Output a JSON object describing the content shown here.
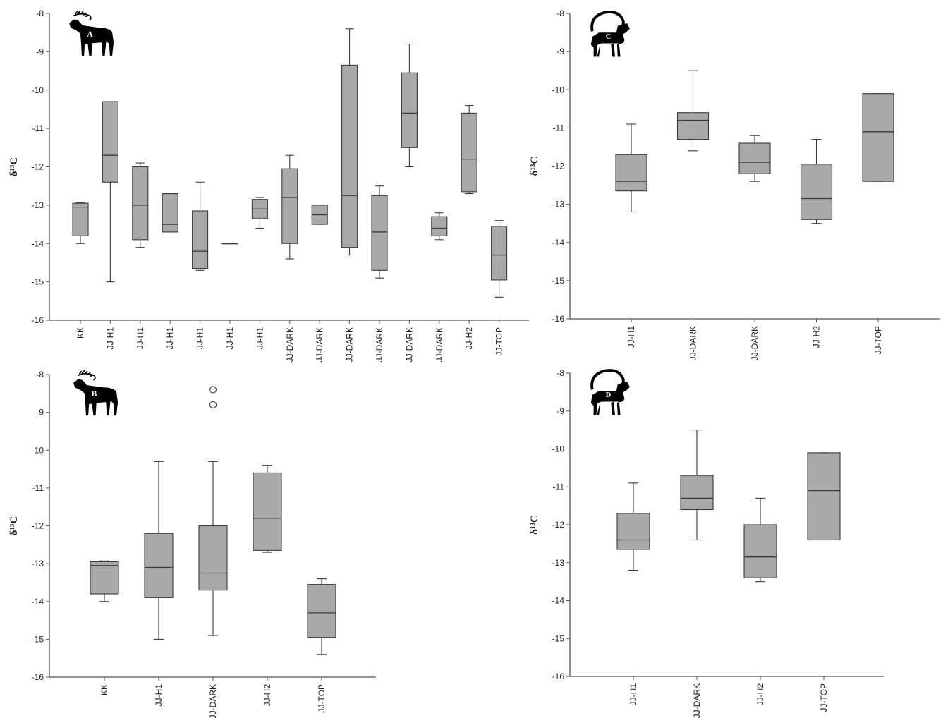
{
  "figure": {
    "y_axis_label": "δ¹³C",
    "colors": {
      "box_fill": "#a9a9ab",
      "stroke": "#3a3a3a",
      "axis": "#555555"
    }
  },
  "chart_data": [
    {
      "type": "box",
      "panel_label": "A",
      "icon": "red-deer-silhouette-icon",
      "ylabel": "δ¹³C",
      "ylim": [
        -16,
        -8
      ],
      "yticks": [
        -8,
        -9,
        -10,
        -11,
        -12,
        -13,
        -14,
        -15,
        -16
      ],
      "categories": [
        "KK",
        "JJ-H1",
        "JJ-H1",
        "JJ-H1",
        "JJ-H1",
        "JJ-H1",
        "JJ-H1",
        "JJ-DARK",
        "JJ-DARK",
        "JJ-DARK",
        "JJ-DARK",
        "JJ-DARK",
        "JJ-DARK",
        "JJ-H2",
        "JJ-TOP"
      ],
      "boxes": [
        {
          "min": -14.0,
          "q1": -13.8,
          "median": -13.05,
          "q3": -12.95,
          "max": -12.93
        },
        {
          "min": -15.0,
          "q1": -12.4,
          "median": -11.7,
          "q3": -10.3,
          "max": -10.3
        },
        {
          "min": -14.1,
          "q1": -13.9,
          "median": -13.0,
          "q3": -12.0,
          "max": -11.9
        },
        {
          "min": -13.7,
          "q1": -13.7,
          "median": -13.5,
          "q3": -12.7,
          "max": -12.7
        },
        {
          "min": -14.7,
          "q1": -14.65,
          "median": -14.2,
          "q3": -13.15,
          "max": -12.4
        },
        {
          "min": -14.0,
          "q1": -14.0,
          "median": -14.0,
          "q3": -14.0,
          "max": -14.0
        },
        {
          "min": -13.6,
          "q1": -13.35,
          "median": -13.1,
          "q3": -12.85,
          "max": -12.8
        },
        {
          "min": -14.4,
          "q1": -14.0,
          "median": -12.8,
          "q3": -12.05,
          "max": -11.7
        },
        {
          "min": -13.5,
          "q1": -13.5,
          "median": -13.25,
          "q3": -13.0,
          "max": -13.0
        },
        {
          "min": -14.3,
          "q1": -14.1,
          "median": -12.75,
          "q3": -9.35,
          "max": -8.4
        },
        {
          "min": -14.9,
          "q1": -14.7,
          "median": -13.7,
          "q3": -12.75,
          "max": -12.5
        },
        {
          "min": -12.0,
          "q1": -11.5,
          "median": -10.6,
          "q3": -9.55,
          "max": -8.8
        },
        {
          "min": -13.9,
          "q1": -13.8,
          "median": -13.6,
          "q3": -13.3,
          "max": -13.2
        },
        {
          "min": -12.7,
          "q1": -12.65,
          "median": -11.8,
          "q3": -10.6,
          "max": -10.4
        },
        {
          "min": -15.4,
          "q1": -14.95,
          "median": -14.3,
          "q3": -13.55,
          "max": -13.4
        }
      ],
      "outliers": []
    },
    {
      "type": "box",
      "panel_label": "C",
      "icon": "ibex-silhouette-icon",
      "ylabel": "δ¹³C",
      "ylim": [
        -16,
        -8
      ],
      "yticks": [
        -8,
        -9,
        -10,
        -11,
        -12,
        -13,
        -14,
        -15,
        -16
      ],
      "categories": [
        "JJ-H1",
        "JJ-DARK",
        "JJ-DARK",
        "JJ-H2",
        "JJ-TOP"
      ],
      "boxes": [
        {
          "min": -13.2,
          "q1": -12.65,
          "median": -12.4,
          "q3": -11.7,
          "max": -10.9
        },
        {
          "min": -11.6,
          "q1": -11.3,
          "median": -10.8,
          "q3": -10.6,
          "max": -9.5
        },
        {
          "min": -12.4,
          "q1": -12.2,
          "median": -11.9,
          "q3": -11.4,
          "max": -11.2
        },
        {
          "min": -13.5,
          "q1": -13.4,
          "median": -12.85,
          "q3": -11.95,
          "max": -11.3
        },
        {
          "min": -12.4,
          "q1": -12.4,
          "median": -11.1,
          "q3": -10.1,
          "max": -10.1
        }
      ],
      "outliers": []
    },
    {
      "type": "box",
      "panel_label": "B",
      "icon": "red-deer-silhouette-icon",
      "ylabel": "δ¹³C",
      "ylim": [
        -16,
        -8
      ],
      "yticks": [
        -8,
        -9,
        -10,
        -11,
        -12,
        -13,
        -14,
        -15,
        -16
      ],
      "categories": [
        "KK",
        "JJ-H1",
        "JJ-DARK",
        "JJ-H2",
        "JJ-TOP"
      ],
      "boxes": [
        {
          "min": -14.0,
          "q1": -13.8,
          "median": -13.05,
          "q3": -12.95,
          "max": -12.93
        },
        {
          "min": -15.0,
          "q1": -13.9,
          "median": -13.1,
          "q3": -12.2,
          "max": -10.3
        },
        {
          "min": -14.9,
          "q1": -13.7,
          "median": -13.25,
          "q3": -12.0,
          "max": -10.3
        },
        {
          "min": -12.7,
          "q1": -12.65,
          "median": -11.8,
          "q3": -10.6,
          "max": -10.4
        },
        {
          "min": -15.4,
          "q1": -14.95,
          "median": -14.3,
          "q3": -13.55,
          "max": -13.4
        }
      ],
      "outliers": [
        {
          "category_index": 2,
          "value": -8.4
        },
        {
          "category_index": 2,
          "value": -8.8
        }
      ]
    },
    {
      "type": "box",
      "panel_label": "D",
      "icon": "ibex-silhouette-icon",
      "ylabel": "δ¹³C",
      "ylim": [
        -16,
        -8
      ],
      "yticks": [
        -8,
        -9,
        -10,
        -11,
        -12,
        -13,
        -14,
        -15,
        -16
      ],
      "categories": [
        "JJ-H1",
        "JJ-DARK",
        "JJ-H2",
        "JJ-TOP"
      ],
      "boxes": [
        {
          "min": -13.2,
          "q1": -12.65,
          "median": -12.4,
          "q3": -11.7,
          "max": -10.9
        },
        {
          "min": -12.4,
          "q1": -11.6,
          "median": -11.3,
          "q3": -10.7,
          "max": -9.5
        },
        {
          "min": -13.5,
          "q1": -13.4,
          "median": -12.85,
          "q3": -12.0,
          "max": -11.3
        },
        {
          "min": -12.4,
          "q1": -12.4,
          "median": -11.1,
          "q3": -10.1,
          "max": -10.1
        }
      ],
      "outliers": []
    }
  ]
}
